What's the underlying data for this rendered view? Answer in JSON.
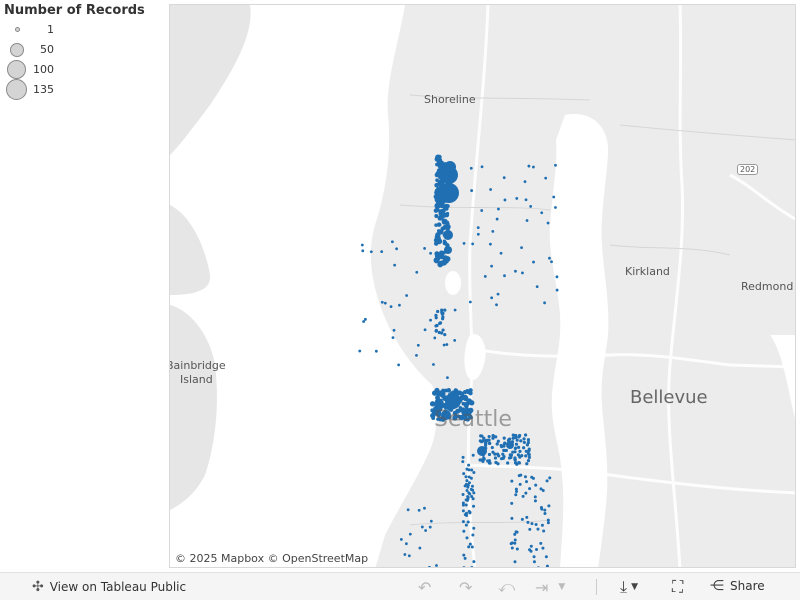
{
  "legend": {
    "title": "Number of Records",
    "items": [
      {
        "label": "1",
        "value": 1
      },
      {
        "label": "50",
        "value": 50
      },
      {
        "label": "100",
        "value": 100
      },
      {
        "label": "135",
        "value": 135
      }
    ]
  },
  "map": {
    "labels": {
      "shoreline": "Shoreline",
      "kirkland": "Kirkland",
      "redmond": "Redmond",
      "bellevue": "Bellevue",
      "bainbridge": "Bainbridge",
      "island": "Island",
      "seattle": "Seattle",
      "hw202": "202"
    },
    "attribution": "© 2025 Mapbox  © OpenStreetMap",
    "point_color": "#1f6fb2"
  },
  "toolbar": {
    "view_label": "View on Tableau Public",
    "share_label": "Share"
  }
}
